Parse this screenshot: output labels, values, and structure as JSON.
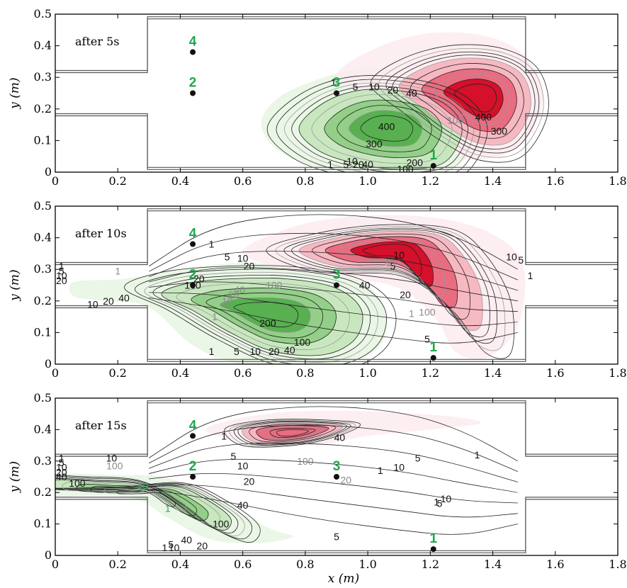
{
  "colors": {
    "tracer_green": "#2a9a3a",
    "tracer_red": "#d4102a",
    "label_green": "#1fa84a",
    "point_marker": "#111111"
  },
  "chart_data": [
    {
      "type": "contour",
      "title": "after 5s",
      "xlabel": "x (m)",
      "ylabel": "y (m)",
      "xlim": [
        0,
        1.8
      ],
      "ylim": [
        0,
        0.5
      ],
      "x_ticks": [
        "0",
        "0.2",
        "0.4",
        "0.6",
        "0.8",
        "1.0",
        "1.2",
        "1.4",
        "1.6",
        "1.8"
      ],
      "y_ticks": [
        "0",
        "0.1",
        "0.2",
        "0.3",
        "0.4",
        "0.5"
      ],
      "measurement_points": [
        {
          "label": "1",
          "x": 1.21,
          "y": 0.02
        },
        {
          "label": "2",
          "x": 0.44,
          "y": 0.25
        },
        {
          "label": "3",
          "x": 0.9,
          "y": 0.25
        },
        {
          "label": "4",
          "x": 0.44,
          "y": 0.38
        }
      ],
      "contour_labels": [
        {
          "text": "1",
          "x": 0.89,
          "y": 0.285,
          "color": "black"
        },
        {
          "text": "5",
          "x": 0.96,
          "y": 0.27,
          "color": "black"
        },
        {
          "text": "10",
          "x": 1.02,
          "y": 0.27,
          "color": "black"
        },
        {
          "text": "20",
          "x": 1.08,
          "y": 0.26,
          "color": "black"
        },
        {
          "text": "40",
          "x": 1.14,
          "y": 0.25,
          "color": "black"
        },
        {
          "text": "400",
          "x": 1.06,
          "y": 0.145,
          "color": "black"
        },
        {
          "text": "300",
          "x": 1.02,
          "y": 0.09,
          "color": "black"
        },
        {
          "text": "200",
          "x": 1.15,
          "y": 0.03,
          "color": "black"
        },
        {
          "text": "100",
          "x": 1.12,
          "y": 0.01,
          "color": "black"
        },
        {
          "text": "1",
          "x": 0.88,
          "y": 0.025,
          "color": "black"
        },
        {
          "text": "5",
          "x": 0.93,
          "y": 0.025,
          "color": "black"
        },
        {
          "text": "10",
          "x": 0.95,
          "y": 0.035,
          "color": "black"
        },
        {
          "text": "20",
          "x": 0.97,
          "y": 0.025,
          "color": "black"
        },
        {
          "text": "40",
          "x": 1.0,
          "y": 0.025,
          "color": "black"
        },
        {
          "text": "400",
          "x": 1.37,
          "y": 0.175,
          "color": "black"
        },
        {
          "text": "300",
          "x": 1.42,
          "y": 0.13,
          "color": "black"
        },
        {
          "text": "100",
          "x": 1.28,
          "y": 0.165,
          "color": "grey"
        }
      ],
      "fills": [
        {
          "tracer": "green",
          "level": 1
        },
        {
          "tracer": "green",
          "level": 2
        },
        {
          "tracer": "green",
          "level": 3
        },
        {
          "tracer": "red",
          "level": 1
        },
        {
          "tracer": "red",
          "level": 2
        },
        {
          "tracer": "red",
          "level": 3
        }
      ]
    },
    {
      "type": "contour",
      "title": "after 10s",
      "xlabel": "x (m)",
      "ylabel": "y (m)",
      "xlim": [
        0,
        1.8
      ],
      "ylim": [
        0,
        0.5
      ],
      "x_ticks": [
        "0",
        "0.2",
        "0.4",
        "0.6",
        "0.8",
        "1.0",
        "1.2",
        "1.4",
        "1.6",
        "1.8"
      ],
      "y_ticks": [
        "0",
        "0.1",
        "0.2",
        "0.3",
        "0.4",
        "0.5"
      ],
      "measurement_points": [
        {
          "label": "1",
          "x": 1.21,
          "y": 0.02
        },
        {
          "label": "2",
          "x": 0.44,
          "y": 0.25
        },
        {
          "label": "3",
          "x": 0.9,
          "y": 0.25
        },
        {
          "label": "4",
          "x": 0.44,
          "y": 0.38
        }
      ],
      "contour_labels": [
        {
          "text": "1",
          "x": 0.02,
          "y": 0.31,
          "color": "black"
        },
        {
          "text": "5",
          "x": 0.02,
          "y": 0.295,
          "color": "black"
        },
        {
          "text": "10",
          "x": 0.02,
          "y": 0.28,
          "color": "black"
        },
        {
          "text": "20",
          "x": 0.02,
          "y": 0.265,
          "color": "black"
        },
        {
          "text": "1",
          "x": 0.2,
          "y": 0.295,
          "color": "grey"
        },
        {
          "text": "10",
          "x": 0.12,
          "y": 0.19,
          "color": "black"
        },
        {
          "text": "20",
          "x": 0.17,
          "y": 0.2,
          "color": "black"
        },
        {
          "text": "40",
          "x": 0.22,
          "y": 0.21,
          "color": "black"
        },
        {
          "text": "1",
          "x": 0.5,
          "y": 0.38,
          "color": "black"
        },
        {
          "text": "5",
          "x": 0.55,
          "y": 0.34,
          "color": "black"
        },
        {
          "text": "10",
          "x": 0.6,
          "y": 0.335,
          "color": "black"
        },
        {
          "text": "20",
          "x": 0.62,
          "y": 0.31,
          "color": "black"
        },
        {
          "text": "20",
          "x": 0.46,
          "y": 0.27,
          "color": "black"
        },
        {
          "text": "100",
          "x": 0.44,
          "y": 0.25,
          "color": "black"
        },
        {
          "text": "40",
          "x": 0.59,
          "y": 0.235,
          "color": "grey"
        },
        {
          "text": "20",
          "x": 0.57,
          "y": 0.22,
          "color": "grey"
        },
        {
          "text": "10",
          "x": 0.55,
          "y": 0.2,
          "color": "grey"
        },
        {
          "text": "1",
          "x": 0.51,
          "y": 0.15,
          "color": "grey"
        },
        {
          "text": "100",
          "x": 0.7,
          "y": 0.25,
          "color": "grey"
        },
        {
          "text": "200",
          "x": 0.68,
          "y": 0.13,
          "color": "black"
        },
        {
          "text": "100",
          "x": 0.79,
          "y": 0.07,
          "color": "black"
        },
        {
          "text": "40",
          "x": 0.75,
          "y": 0.045,
          "color": "black"
        },
        {
          "text": "20",
          "x": 0.7,
          "y": 0.04,
          "color": "black"
        },
        {
          "text": "10",
          "x": 0.64,
          "y": 0.04,
          "color": "black"
        },
        {
          "text": "5",
          "x": 0.58,
          "y": 0.04,
          "color": "black"
        },
        {
          "text": "1",
          "x": 0.5,
          "y": 0.04,
          "color": "black"
        },
        {
          "text": "40",
          "x": 0.99,
          "y": 0.25,
          "color": "black"
        },
        {
          "text": "20",
          "x": 1.12,
          "y": 0.22,
          "color": "black"
        },
        {
          "text": "10",
          "x": 1.1,
          "y": 0.345,
          "color": "black"
        },
        {
          "text": "5",
          "x": 1.08,
          "y": 0.31,
          "color": "black"
        },
        {
          "text": "40",
          "x": 1.07,
          "y": 0.32,
          "color": "grey"
        },
        {
          "text": "1",
          "x": 1.14,
          "y": 0.16,
          "color": "grey"
        },
        {
          "text": "100",
          "x": 1.19,
          "y": 0.165,
          "color": "grey"
        },
        {
          "text": "5",
          "x": 1.19,
          "y": 0.08,
          "color": "black"
        },
        {
          "text": "10",
          "x": 1.46,
          "y": 0.34,
          "color": "black"
        },
        {
          "text": "5",
          "x": 1.49,
          "y": 0.33,
          "color": "black"
        },
        {
          "text": "1",
          "x": 1.52,
          "y": 0.28,
          "color": "black"
        }
      ],
      "fills": [
        {
          "tracer": "green",
          "level": 1
        },
        {
          "tracer": "green",
          "level": 2
        },
        {
          "tracer": "green",
          "level": 3
        },
        {
          "tracer": "red",
          "level": 1
        },
        {
          "tracer": "red",
          "level": 2
        },
        {
          "tracer": "red",
          "level": 3
        }
      ]
    },
    {
      "type": "contour",
      "title": "after 15s",
      "xlabel": "x (m)",
      "ylabel": "y (m)",
      "xlim": [
        0,
        1.8
      ],
      "ylim": [
        0,
        0.5
      ],
      "x_ticks": [
        "0",
        "0.2",
        "0.4",
        "0.6",
        "0.8",
        "1.0",
        "1.2",
        "1.4",
        "1.6",
        "1.8"
      ],
      "y_ticks": [
        "0",
        "0.1",
        "0.2",
        "0.3",
        "0.4",
        "0.5"
      ],
      "measurement_points": [
        {
          "label": "1",
          "x": 1.21,
          "y": 0.02
        },
        {
          "label": "2",
          "x": 0.44,
          "y": 0.25
        },
        {
          "label": "3",
          "x": 0.9,
          "y": 0.25
        },
        {
          "label": "4",
          "x": 0.44,
          "y": 0.38
        }
      ],
      "contour_labels": [
        {
          "text": "1",
          "x": 0.02,
          "y": 0.31,
          "color": "black"
        },
        {
          "text": "5",
          "x": 0.02,
          "y": 0.295,
          "color": "black"
        },
        {
          "text": "10",
          "x": 0.02,
          "y": 0.28,
          "color": "black"
        },
        {
          "text": "20",
          "x": 0.02,
          "y": 0.265,
          "color": "black"
        },
        {
          "text": "40",
          "x": 0.02,
          "y": 0.25,
          "color": "black"
        },
        {
          "text": "10",
          "x": 0.18,
          "y": 0.31,
          "color": "black"
        },
        {
          "text": "100",
          "x": 0.19,
          "y": 0.285,
          "color": "grey"
        },
        {
          "text": "100",
          "x": 0.07,
          "y": 0.23,
          "color": "black"
        },
        {
          "text": "20",
          "x": 0.28,
          "y": 0.22,
          "color": "grey"
        },
        {
          "text": "40",
          "x": 0.28,
          "y": 0.22,
          "color": "green"
        },
        {
          "text": "1",
          "x": 0.36,
          "y": 0.15,
          "color": "green"
        },
        {
          "text": "100",
          "x": 0.53,
          "y": 0.1,
          "color": "black"
        },
        {
          "text": "1",
          "x": 0.54,
          "y": 0.38,
          "color": "black"
        },
        {
          "text": "5",
          "x": 0.57,
          "y": 0.315,
          "color": "black"
        },
        {
          "text": "10",
          "x": 0.6,
          "y": 0.285,
          "color": "black"
        },
        {
          "text": "20",
          "x": 0.62,
          "y": 0.235,
          "color": "black"
        },
        {
          "text": "40",
          "x": 0.6,
          "y": 0.16,
          "color": "black"
        },
        {
          "text": "100",
          "x": 0.8,
          "y": 0.3,
          "color": "grey"
        },
        {
          "text": "40",
          "x": 0.91,
          "y": 0.375,
          "color": "black"
        },
        {
          "text": "20",
          "x": 0.93,
          "y": 0.24,
          "color": "grey"
        },
        {
          "text": "1",
          "x": 1.04,
          "y": 0.27,
          "color": "black"
        },
        {
          "text": "10",
          "x": 1.1,
          "y": 0.28,
          "color": "black"
        },
        {
          "text": "5",
          "x": 1.16,
          "y": 0.31,
          "color": "black"
        },
        {
          "text": "1",
          "x": 1.35,
          "y": 0.32,
          "color": "black"
        },
        {
          "text": "5",
          "x": 0.9,
          "y": 0.06,
          "color": "black"
        },
        {
          "text": "1",
          "x": 1.22,
          "y": 0.17,
          "color": "black"
        },
        {
          "text": "10",
          "x": 1.25,
          "y": 0.18,
          "color": "black"
        },
        {
          "text": "5",
          "x": 1.23,
          "y": 0.165,
          "color": "black"
        },
        {
          "text": "1",
          "x": 0.35,
          "y": 0.025,
          "color": "black"
        },
        {
          "text": "5",
          "x": 0.37,
          "y": 0.035,
          "color": "black"
        },
        {
          "text": "10",
          "x": 0.38,
          "y": 0.025,
          "color": "black"
        },
        {
          "text": "20",
          "x": 0.47,
          "y": 0.03,
          "color": "black"
        },
        {
          "text": "40",
          "x": 0.42,
          "y": 0.05,
          "color": "black"
        }
      ],
      "fills": [
        {
          "tracer": "green",
          "level": 1
        },
        {
          "tracer": "green",
          "level": 2
        },
        {
          "tracer": "red",
          "level": 1
        },
        {
          "tracer": "red",
          "level": 2
        }
      ]
    }
  ]
}
